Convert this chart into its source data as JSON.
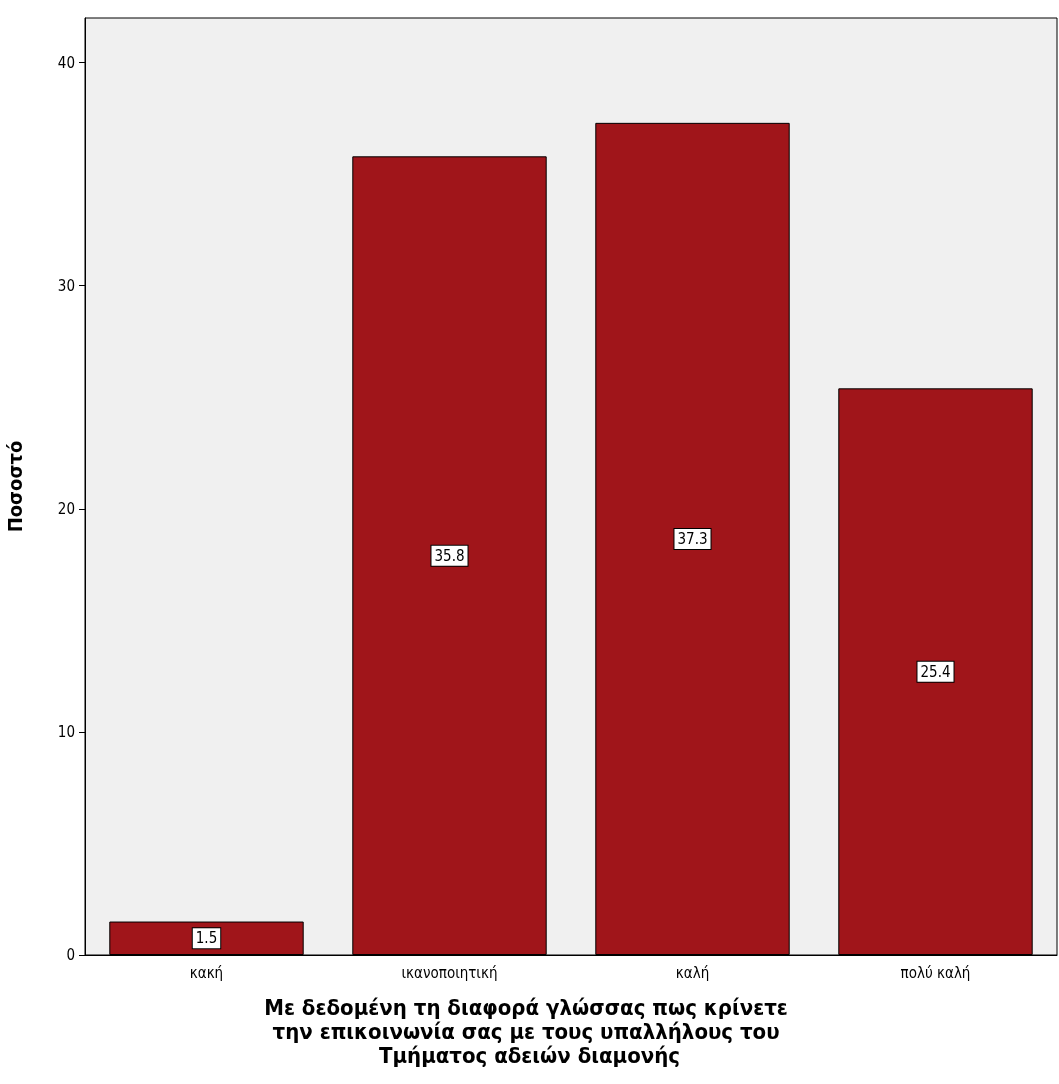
{
  "chart_data": {
    "type": "bar",
    "xlabel": "Με δεδομένη τη διαφορά γλώσσας πως κρίνετε την επικοινωνία σας με τους υπαλλήλους του Τμήματος αδειών διαμονής",
    "ylabel": "Ποσοστό",
    "categories": [
      "κακή",
      "ικανοποιητική",
      "καλή",
      "πολύ καλή"
    ],
    "values": [
      1.5,
      35.8,
      37.3,
      25.4
    ],
    "color": "#a0151a",
    "ylim": [
      0,
      42
    ],
    "yticks": [
      0,
      10,
      20,
      30,
      40
    ],
    "grid": false,
    "data_labels": true
  }
}
